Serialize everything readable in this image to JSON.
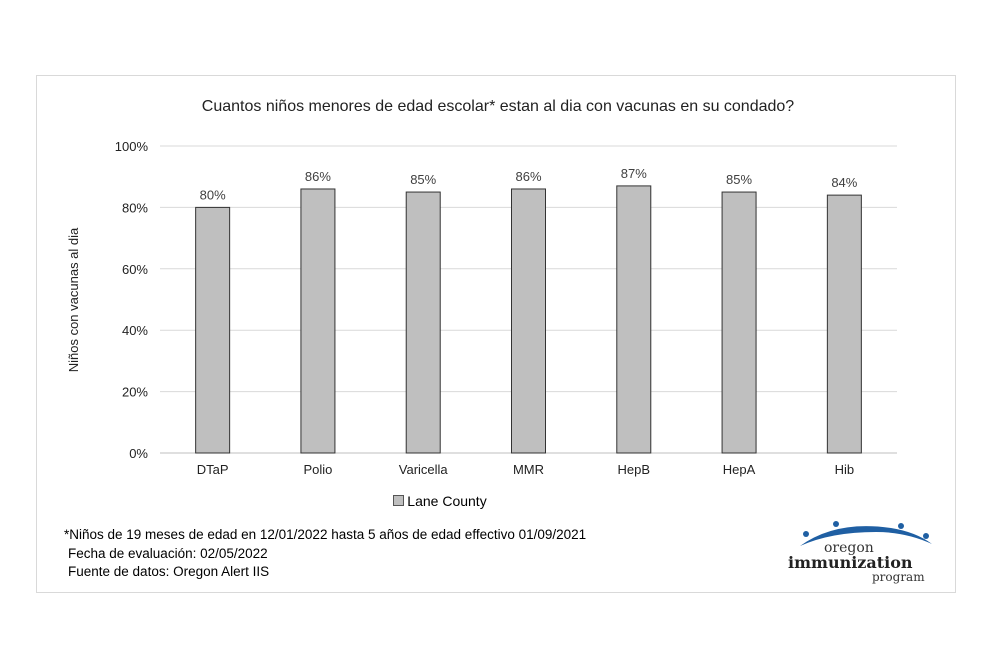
{
  "chart_data": {
    "type": "bar",
    "title": "Cuantos niños menores de edad escolar* estan al dia con vacunas en su condado?",
    "ylabel": "Niños con vacunas al dia",
    "xlabel": "",
    "categories": [
      "DTaP",
      "Polio",
      "Varicella",
      "MMR",
      "HepB",
      "HepA",
      "Hib"
    ],
    "series": [
      {
        "name": "Lane County",
        "values": [
          80,
          86,
          85,
          86,
          87,
          85,
          84
        ],
        "color": "#bfbfbf"
      }
    ],
    "data_labels": [
      "80%",
      "86%",
      "85%",
      "86%",
      "87%",
      "85%",
      "84%"
    ],
    "ylim": [
      0,
      100
    ],
    "yticks": [
      "0%",
      "20%",
      "40%",
      "60%",
      "80%",
      "100%"
    ],
    "grid": true,
    "legend_position": "bottom"
  },
  "footnotes": {
    "note": "*Niños de 19 meses de edad en  12/01/2022 hasta 5 años de edad effectivo 01/09/2021",
    "eval_date": "Fecha de evaluación: 02/05/2022",
    "source": "Fuente de datos: Oregon Alert IIS"
  },
  "logo": {
    "line1": "oregon",
    "line2": "immunization",
    "line3": "program",
    "color": "#1f5fa3"
  }
}
